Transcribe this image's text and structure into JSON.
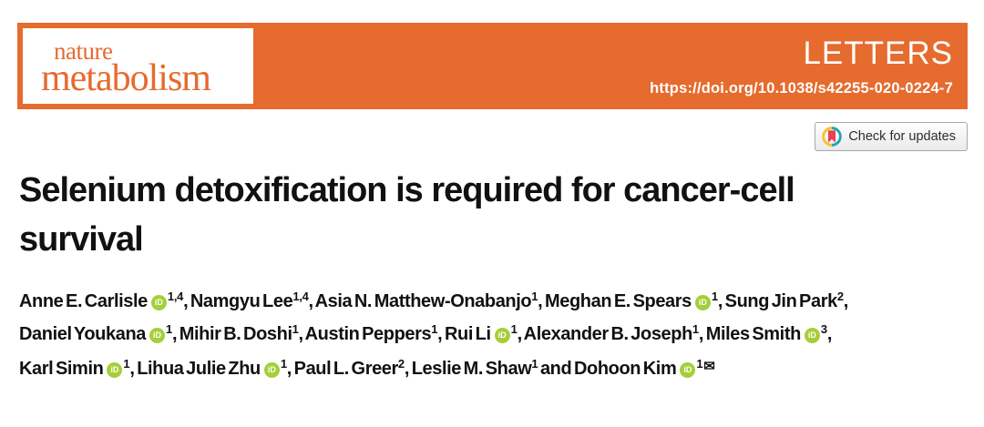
{
  "banner": {
    "brand_color": "#e66b2e",
    "journal_name_line1": "nature",
    "journal_name_line2": "metabolism",
    "article_type": "LETTERS",
    "doi": "https://doi.org/10.1038/s42255-020-0224-7"
  },
  "check_for_updates": {
    "label": "Check for updates"
  },
  "title": {
    "lines": [
      "Selenium detoxification is required for cancer-cell",
      "survival"
    ]
  },
  "icons": {
    "orcid_glyph": "iD",
    "envelope_glyph": "✉",
    "orcid_color": "#a6ce39",
    "crossmark_yellow": "#f6c32d",
    "crossmark_teal": "#27a2b2",
    "crossmark_red": "#ee4050"
  },
  "authors": {
    "lines": [
      [
        {
          "name": "Anne E. Carlisle",
          "orcid": true,
          "sup": "1,4",
          "post": ", "
        },
        {
          "name": "Namgyu Lee",
          "orcid": false,
          "sup": "1,4",
          "post": ", "
        },
        {
          "name": "Asia N. Matthew-Onabanjo",
          "orcid": false,
          "sup": "1",
          "post": ", "
        },
        {
          "name": "Meghan E. Spears",
          "orcid": true,
          "sup": "1",
          "post": ", "
        },
        {
          "name": "Sung Jin Park",
          "orcid": false,
          "sup": "2",
          "post": ","
        }
      ],
      [
        {
          "name": "Daniel Youkana",
          "orcid": true,
          "sup": "1",
          "post": ", "
        },
        {
          "name": "Mihir B. Doshi",
          "orcid": false,
          "sup": "1",
          "post": ", "
        },
        {
          "name": "Austin Peppers",
          "orcid": false,
          "sup": "1",
          "post": ", "
        },
        {
          "name": "Rui Li",
          "orcid": true,
          "sup": "1",
          "post": ", "
        },
        {
          "name": "Alexander B. Joseph",
          "orcid": false,
          "sup": "1",
          "post": ", "
        },
        {
          "name": "Miles Smith",
          "orcid": true,
          "sup": "3",
          "post": ","
        }
      ],
      [
        {
          "name": "Karl Simin",
          "orcid": true,
          "sup": "1",
          "post": ", "
        },
        {
          "name": "Lihua Julie Zhu",
          "orcid": true,
          "sup": "1",
          "post": ", "
        },
        {
          "name": "Paul L. Greer",
          "orcid": false,
          "sup": "2",
          "post": ", "
        },
        {
          "name": "Leslie M. Shaw",
          "orcid": false,
          "sup": "1",
          "post": " and "
        },
        {
          "name": "Dohoon Kim",
          "orcid": true,
          "sup": "1",
          "envelope": true,
          "post": ""
        }
      ]
    ]
  }
}
